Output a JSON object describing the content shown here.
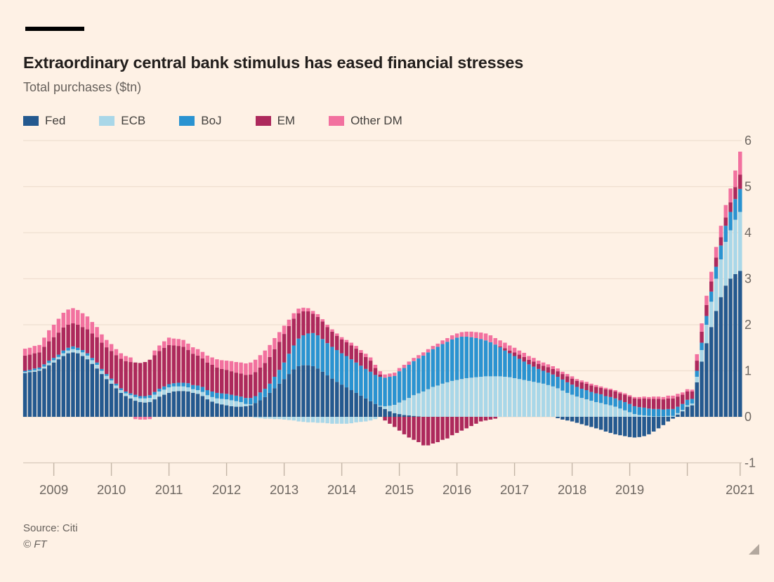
{
  "header": {
    "title": "Extraordinary central bank stimulus has eased financial stresses",
    "subtitle": "Total purchases ($tn)"
  },
  "footer": {
    "source": "Source: Citi",
    "copyright": "© FT"
  },
  "colors": {
    "background": "#fef1e5",
    "title_text": "#221e1c",
    "muted_text": "#66605b",
    "gridline": "#efdfd0",
    "axis_line": "#d8cabb",
    "tick": "#c3b5a7",
    "fed": "#24598f",
    "ecb": "#a9d7e8",
    "boj": "#2a93d1",
    "em": "#ad295c",
    "other_dm": "#f2719f"
  },
  "chart_data": {
    "type": "bar",
    "stacked": true,
    "frequency": "monthly",
    "start_month": "2008-07",
    "end_month": "2020-12",
    "title": "Total purchases ($tn)",
    "xlabel": "",
    "ylabel": "$tn",
    "ylim": [
      -1,
      6
    ],
    "grid": true,
    "legend_position": "top",
    "y_ticks": [
      6,
      5,
      4,
      3,
      2,
      1,
      0,
      -1
    ],
    "y_tick_labels": [
      "6",
      "5",
      "4",
      "3",
      "2",
      "1",
      "0",
      "-1"
    ],
    "x_year_ticks": [
      {
        "label": "2009",
        "month_index": 6
      },
      {
        "label": "2010",
        "month_index": 18
      },
      {
        "label": "2011",
        "month_index": 30
      },
      {
        "label": "2012",
        "month_index": 42
      },
      {
        "label": "2013",
        "month_index": 54
      },
      {
        "label": "2014",
        "month_index": 66
      },
      {
        "label": "2015",
        "month_index": 78
      },
      {
        "label": "2016",
        "month_index": 90
      },
      {
        "label": "2017",
        "month_index": 102
      },
      {
        "label": "2018",
        "month_index": 114
      },
      {
        "label": "2019",
        "month_index": 126
      },
      {
        "label": "",
        "month_index": 138
      },
      {
        "label": "2021",
        "month_index": 149
      }
    ],
    "series": [
      {
        "name": "Fed",
        "color": "#24598f",
        "values": [
          0.95,
          0.97,
          0.98,
          1.0,
          1.05,
          1.12,
          1.18,
          1.25,
          1.32,
          1.38,
          1.4,
          1.38,
          1.32,
          1.25,
          1.15,
          1.05,
          0.93,
          0.82,
          0.72,
          0.62,
          0.52,
          0.45,
          0.4,
          0.35,
          0.32,
          0.31,
          0.32,
          0.38,
          0.44,
          0.48,
          0.52,
          0.55,
          0.56,
          0.56,
          0.55,
          0.52,
          0.5,
          0.45,
          0.38,
          0.33,
          0.29,
          0.27,
          0.25,
          0.23,
          0.22,
          0.22,
          0.23,
          0.25,
          0.3,
          0.36,
          0.43,
          0.52,
          0.62,
          0.72,
          0.82,
          0.93,
          1.03,
          1.1,
          1.12,
          1.12,
          1.1,
          1.05,
          0.98,
          0.9,
          0.83,
          0.76,
          0.7,
          0.64,
          0.58,
          0.52,
          0.46,
          0.4,
          0.34,
          0.28,
          0.22,
          0.17,
          0.12,
          0.08,
          0.06,
          0.04,
          0.03,
          0.02,
          0.01,
          0,
          0,
          0,
          0,
          0,
          0,
          0,
          0,
          0,
          0,
          0,
          0,
          0,
          0,
          0,
          0,
          0,
          0,
          0,
          0,
          0,
          0,
          0,
          0,
          0,
          0,
          0,
          0,
          -0.03,
          -0.06,
          -0.08,
          -0.1,
          -0.13,
          -0.16,
          -0.19,
          -0.22,
          -0.25,
          -0.28,
          -0.32,
          -0.35,
          -0.38,
          -0.4,
          -0.42,
          -0.44,
          -0.45,
          -0.44,
          -0.42,
          -0.38,
          -0.32,
          -0.25,
          -0.18,
          -0.1,
          -0.04,
          0.05,
          0.12,
          0.22,
          0.25,
          0.75,
          1.2,
          1.6,
          1.95,
          2.3,
          2.6,
          2.85,
          3.0,
          3.1,
          3.17
        ]
      },
      {
        "name": "ECB",
        "color": "#a9d7e8",
        "values": [
          0.02,
          0.02,
          0.03,
          0.03,
          0.04,
          0.05,
          0.05,
          0.05,
          0.06,
          0.06,
          0.07,
          0.07,
          0.08,
          0.08,
          0.08,
          0.08,
          0.07,
          0.07,
          0.07,
          0.06,
          0.06,
          0.06,
          0.07,
          0.08,
          0.08,
          0.09,
          0.09,
          0.1,
          0.11,
          0.11,
          0.12,
          0.11,
          0.1,
          0.1,
          0.09,
          0.08,
          0.08,
          0.09,
          0.09,
          0.1,
          0.11,
          0.12,
          0.13,
          0.13,
          0.12,
          0.1,
          0.05,
          0.02,
          -0.02,
          -0.03,
          -0.04,
          -0.04,
          -0.05,
          -0.05,
          -0.06,
          -0.07,
          -0.08,
          -0.1,
          -0.11,
          -0.12,
          -0.12,
          -0.13,
          -0.13,
          -0.14,
          -0.15,
          -0.15,
          -0.15,
          -0.15,
          -0.14,
          -0.12,
          -0.11,
          -0.1,
          -0.08,
          -0.05,
          0.02,
          0.06,
          0.12,
          0.18,
          0.25,
          0.32,
          0.38,
          0.45,
          0.5,
          0.55,
          0.6,
          0.65,
          0.68,
          0.72,
          0.75,
          0.78,
          0.8,
          0.82,
          0.84,
          0.85,
          0.86,
          0.87,
          0.88,
          0.88,
          0.88,
          0.88,
          0.87,
          0.86,
          0.84,
          0.82,
          0.8,
          0.78,
          0.76,
          0.74,
          0.72,
          0.69,
          0.66,
          0.62,
          0.57,
          0.52,
          0.48,
          0.44,
          0.41,
          0.38,
          0.35,
          0.32,
          0.3,
          0.27,
          0.25,
          0.22,
          0.18,
          0.14,
          0.1,
          0.06,
          0.04,
          0.03,
          0.02,
          0.01,
          0.01,
          0.01,
          0.02,
          0.02,
          0.03,
          0.03,
          0.03,
          0.04,
          0.12,
          0.25,
          0.4,
          0.55,
          0.7,
          0.82,
          0.95,
          1.05,
          1.18,
          1.28
        ]
      },
      {
        "name": "BoJ",
        "color": "#2a93d1",
        "values": [
          0.03,
          0.03,
          0.04,
          0.04,
          0.05,
          0.05,
          0.05,
          0.05,
          0.06,
          0.06,
          0.06,
          0.05,
          0.05,
          0.05,
          0.05,
          0.05,
          0.04,
          0.04,
          0.04,
          0.04,
          0.04,
          0.04,
          0.04,
          0.05,
          0.05,
          0.05,
          0.06,
          0.06,
          0.06,
          0.07,
          0.07,
          0.07,
          0.08,
          0.08,
          0.09,
          0.09,
          0.1,
          0.11,
          0.11,
          0.12,
          0.12,
          0.12,
          0.12,
          0.12,
          0.12,
          0.12,
          0.13,
          0.14,
          0.15,
          0.17,
          0.18,
          0.2,
          0.25,
          0.3,
          0.36,
          0.44,
          0.52,
          0.6,
          0.65,
          0.69,
          0.72,
          0.72,
          0.71,
          0.7,
          0.69,
          0.69,
          0.68,
          0.68,
          0.67,
          0.66,
          0.65,
          0.64,
          0.64,
          0.63,
          0.63,
          0.62,
          0.63,
          0.63,
          0.68,
          0.7,
          0.72,
          0.74,
          0.76,
          0.78,
          0.8,
          0.82,
          0.84,
          0.86,
          0.88,
          0.9,
          0.92,
          0.92,
          0.9,
          0.88,
          0.85,
          0.82,
          0.78,
          0.74,
          0.69,
          0.63,
          0.57,
          0.52,
          0.48,
          0.44,
          0.4,
          0.36,
          0.33,
          0.3,
          0.28,
          0.27,
          0.26,
          0.25,
          0.24,
          0.23,
          0.22,
          0.21,
          0.2,
          0.2,
          0.19,
          0.19,
          0.19,
          0.18,
          0.18,
          0.18,
          0.18,
          0.18,
          0.18,
          0.17,
          0.17,
          0.17,
          0.16,
          0.16,
          0.16,
          0.15,
          0.15,
          0.15,
          0.14,
          0.13,
          0.12,
          0.1,
          0.13,
          0.16,
          0.19,
          0.22,
          0.26,
          0.3,
          0.35,
          0.4,
          0.45,
          0.5
        ]
      },
      {
        "name": "EM",
        "color": "#ad295c",
        "values": [
          0.33,
          0.33,
          0.33,
          0.33,
          0.38,
          0.42,
          0.45,
          0.48,
          0.5,
          0.5,
          0.5,
          0.5,
          0.5,
          0.52,
          0.53,
          0.55,
          0.57,
          0.58,
          0.6,
          0.62,
          0.64,
          0.66,
          0.68,
          0.7,
          0.72,
          0.74,
          0.77,
          0.8,
          0.82,
          0.84,
          0.85,
          0.82,
          0.8,
          0.78,
          0.72,
          0.68,
          0.65,
          0.62,
          0.6,
          0.58,
          0.55,
          0.53,
          0.52,
          0.51,
          0.5,
          0.5,
          0.5,
          0.51,
          0.52,
          0.54,
          0.56,
          0.58,
          0.6,
          0.61,
          0.62,
          0.6,
          0.58,
          0.55,
          0.52,
          0.48,
          0.42,
          0.4,
          0.38,
          0.35,
          0.33,
          0.31,
          0.3,
          0.3,
          0.3,
          0.3,
          0.28,
          0.26,
          0.24,
          0.15,
          0.05,
          -0.08,
          -0.15,
          -0.22,
          -0.3,
          -0.38,
          -0.45,
          -0.5,
          -0.55,
          -0.62,
          -0.62,
          -0.58,
          -0.55,
          -0.5,
          -0.47,
          -0.4,
          -0.35,
          -0.3,
          -0.25,
          -0.2,
          -0.15,
          -0.1,
          -0.08,
          -0.06,
          -0.04,
          0.02,
          0.05,
          0.06,
          0.08,
          0.09,
          0.1,
          0.1,
          0.11,
          0.11,
          0.11,
          0.12,
          0.12,
          0.12,
          0.12,
          0.13,
          0.13,
          0.13,
          0.14,
          0.14,
          0.14,
          0.14,
          0.14,
          0.15,
          0.15,
          0.15,
          0.15,
          0.16,
          0.16,
          0.17,
          0.18,
          0.2,
          0.21,
          0.22,
          0.22,
          0.22,
          0.23,
          0.23,
          0.22,
          0.2,
          0.18,
          0.16,
          0.22,
          0.24,
          0.24,
          0.22,
          0.2,
          0.18,
          0.18,
          0.21,
          0.26,
          0.31
        ]
      },
      {
        "name": "Other DM",
        "color": "#f2719f",
        "values": [
          0.15,
          0.15,
          0.16,
          0.16,
          0.2,
          0.24,
          0.27,
          0.3,
          0.32,
          0.33,
          0.33,
          0.32,
          0.3,
          0.28,
          0.25,
          0.22,
          0.18,
          0.16,
          0.15,
          0.13,
          0.12,
          0.11,
          0.1,
          -0.05,
          -0.06,
          -0.06,
          -0.05,
          0.1,
          0.12,
          0.14,
          0.16,
          0.15,
          0.15,
          0.15,
          0.14,
          0.14,
          0.14,
          0.14,
          0.15,
          0.16,
          0.18,
          0.19,
          0.2,
          0.22,
          0.23,
          0.24,
          0.25,
          0.26,
          0.27,
          0.27,
          0.27,
          0.26,
          0.24,
          0.21,
          0.18,
          0.14,
          0.12,
          0.1,
          0.08,
          0.07,
          0.06,
          0.06,
          0.05,
          0.05,
          0.05,
          0.05,
          0.05,
          0.05,
          0.06,
          0.06,
          0.06,
          0.07,
          0.07,
          0.07,
          0.07,
          0.07,
          0.07,
          0.07,
          0.07,
          0.07,
          0.07,
          0.07,
          0.07,
          0.07,
          0.07,
          0.07,
          0.07,
          0.08,
          0.08,
          0.09,
          0.09,
          0.1,
          0.11,
          0.12,
          0.13,
          0.14,
          0.15,
          0.15,
          0.14,
          0.13,
          0.12,
          0.11,
          0.1,
          0.09,
          0.09,
          0.08,
          0.08,
          0.07,
          0.07,
          0.06,
          0.06,
          0.06,
          0.05,
          0.05,
          0.05,
          0.04,
          0.04,
          0.04,
          0.04,
          0.04,
          0.03,
          0.03,
          0.03,
          0.03,
          0.03,
          0.03,
          0.03,
          0.03,
          0.04,
          0.04,
          0.04,
          0.05,
          0.05,
          0.05,
          0.06,
          0.06,
          0.06,
          0.05,
          0.05,
          0.04,
          0.14,
          0.18,
          0.2,
          0.21,
          0.23,
          0.25,
          0.27,
          0.3,
          0.36,
          0.5
        ]
      }
    ]
  }
}
